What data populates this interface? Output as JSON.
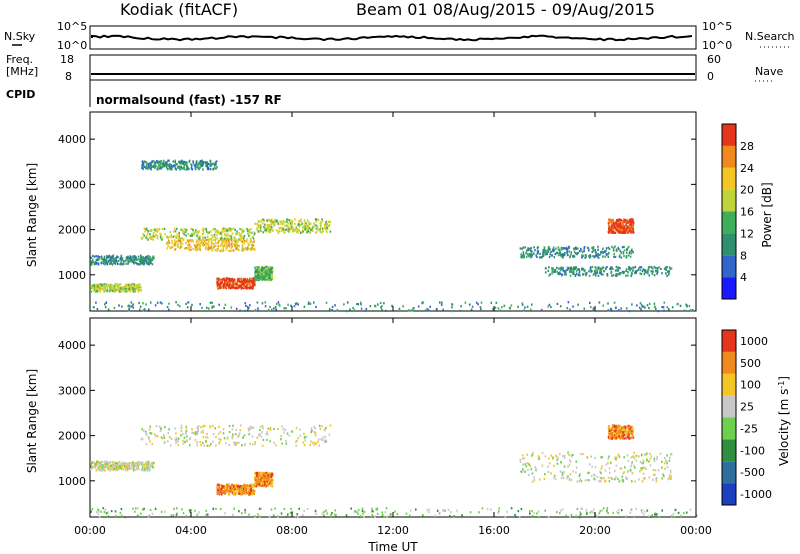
{
  "header": {
    "station": "Kodiak (fitACF)",
    "beam_range": "Beam 01 08/Aug/2015 - 09/Aug/2015"
  },
  "summary": {
    "left_labels": {
      "nsky": "N.Sky",
      "freq_line1": "Freq.",
      "freq_line2": "[MHz]",
      "cpid": "CPID"
    },
    "right_labels": {
      "nsearch": "N.Search",
      "nave": "Nave"
    },
    "noise_ticks": {
      "top": "10^5",
      "bottom": "10^0"
    },
    "freq_ticks": {
      "top": "18",
      "bottom": "8"
    },
    "nave_ticks": {
      "top": "60",
      "bottom": "0"
    },
    "cpid_text": "normalsound (fast) -157 RF"
  },
  "chart_data": [
    {
      "type": "heatmap",
      "panel": "power",
      "ylabel": "Slant Range [km]",
      "xlabel": "",
      "ylim": [
        200,
        4600
      ],
      "xlim": [
        0,
        24
      ],
      "yticks": [
        "1000",
        "2000",
        "3000",
        "4000"
      ],
      "xticks": [
        "00:00",
        "04:00",
        "08:00",
        "12:00",
        "16:00",
        "20:00",
        "00:00"
      ],
      "colorbar": {
        "label": "Power [dB]",
        "ticks": [
          "4",
          "8",
          "12",
          "16",
          "20",
          "24",
          "28"
        ],
        "colors": [
          "#1a1aff",
          "#3366cc",
          "#2f8f6f",
          "#3fae5a",
          "#bfd43a",
          "#f4c623",
          "#f08a1c",
          "#e3361b"
        ]
      },
      "features": [
        {
          "t0": 0.0,
          "t1": 2.5,
          "r0": 1250,
          "r1": 1450,
          "level": 2
        },
        {
          "t0": 0.0,
          "t1": 2.0,
          "r0": 650,
          "r1": 820,
          "level": 4
        },
        {
          "t0": 2.0,
          "t1": 6.5,
          "r0": 1800,
          "r1": 2050,
          "level": 4
        },
        {
          "t0": 3.0,
          "t1": 6.5,
          "r0": 1550,
          "r1": 1800,
          "level": 5
        },
        {
          "t0": 6.5,
          "t1": 9.5,
          "r0": 1950,
          "r1": 2250,
          "level": 4
        },
        {
          "t0": 5.0,
          "t1": 6.5,
          "r0": 720,
          "r1": 950,
          "level": 7
        },
        {
          "t0": 6.5,
          "t1": 7.2,
          "r0": 900,
          "r1": 1200,
          "level": 3
        },
        {
          "t0": 0.0,
          "t1": 24.0,
          "r0": 220,
          "r1": 420,
          "level": 2
        },
        {
          "t0": 17.0,
          "t1": 21.5,
          "r0": 1400,
          "r1": 1650,
          "level": 2
        },
        {
          "t0": 18.0,
          "t1": 23.0,
          "r0": 1000,
          "r1": 1200,
          "level": 2
        },
        {
          "t0": 20.5,
          "t1": 21.5,
          "r0": 1950,
          "r1": 2250,
          "level": 7
        },
        {
          "t0": 2.0,
          "t1": 5.0,
          "r0": 3350,
          "r1": 3550,
          "level": 2
        }
      ]
    },
    {
      "type": "heatmap",
      "panel": "velocity",
      "ylabel": "Slant Range [km]",
      "xlabel": "Time UT",
      "ylim": [
        200,
        4600
      ],
      "xlim": [
        0,
        24
      ],
      "yticks": [
        "1000",
        "2000",
        "3000",
        "4000"
      ],
      "xticks": [
        "00:00",
        "04:00",
        "08:00",
        "12:00",
        "16:00",
        "20:00",
        "00:00"
      ],
      "colorbar": {
        "label": "Velocity [m s^-1]",
        "ticks": [
          "1000",
          "500",
          "100",
          "25",
          "-25",
          "-100",
          "-500",
          "-1000"
        ],
        "colors": [
          "#1a3fbf",
          "#2f6f9f",
          "#2f8f3f",
          "#6fcf4f",
          "#c8c8c8",
          "#f4c623",
          "#f08a1c",
          "#e3361b"
        ]
      },
      "features": [
        {
          "t0": 0.0,
          "t1": 2.5,
          "r0": 1250,
          "r1": 1450,
          "level": 4
        },
        {
          "t0": 2.0,
          "t1": 9.5,
          "r0": 1800,
          "r1": 2250,
          "level": 4
        },
        {
          "t0": 5.0,
          "t1": 6.5,
          "r0": 720,
          "r1": 950,
          "level": 6
        },
        {
          "t0": 6.5,
          "t1": 7.2,
          "r0": 900,
          "r1": 1200,
          "level": 6
        },
        {
          "t0": 0.0,
          "t1": 24.0,
          "r0": 220,
          "r1": 420,
          "level": 3
        },
        {
          "t0": 17.0,
          "t1": 23.0,
          "r0": 1000,
          "r1": 1650,
          "level": 4
        },
        {
          "t0": 20.5,
          "t1": 21.5,
          "r0": 1950,
          "r1": 2250,
          "level": 6
        }
      ]
    }
  ]
}
